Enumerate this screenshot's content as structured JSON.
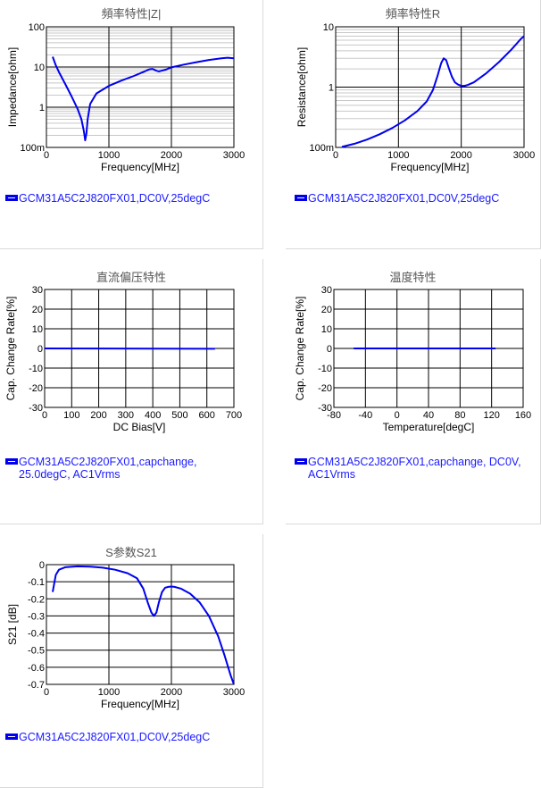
{
  "panels": [
    {
      "id": "p1",
      "title": "頻率特性|Z|",
      "legend": "GCM31A5C2J820FX01,DC0V,25degC"
    },
    {
      "id": "p2",
      "title": "頻率特性R",
      "legend": "GCM31A5C2J820FX01,DC0V,25degC"
    },
    {
      "id": "p3",
      "title": "直流偏压特性",
      "legend": "GCM31A5C2J820FX01,capchange,\n25.0degC, AC1Vrms"
    },
    {
      "id": "p4",
      "title": "温度特性",
      "legend": "GCM31A5C2J820FX01,capchange, DC0V,\nAC1Vrms"
    },
    {
      "id": "p5",
      "title": "S参数S21",
      "legend": "GCM31A5C2J820FX01,DC0V,25degC"
    }
  ],
  "colors": {
    "series": "#0000ee",
    "legend_text": "#1a1aff",
    "grid_major": "#000000",
    "grid_minor": "#c8c8c8"
  },
  "chart_data": [
    {
      "type": "line",
      "log_y": true,
      "xlabel": "Frequency[MHz]",
      "ylabel": "Impedance[ohm]",
      "xlim": [
        0,
        3000
      ],
      "ylim": [
        0.1,
        100
      ],
      "xticks": [
        0,
        1000,
        2000,
        3000
      ],
      "xtick_labels": [
        "0",
        "1000",
        "2000",
        "3000"
      ],
      "yticks": [
        0.1,
        1,
        10,
        100
      ],
      "ytick_labels": [
        "100m",
        "1",
        "10",
        "100"
      ],
      "series": [
        {
          "name": "GCM31A5C2J820FX01,DC0V,25degC",
          "x": [
            100,
            150,
            200,
            300,
            400,
            500,
            560,
            600,
            620,
            640,
            660,
            700,
            800,
            1000,
            1200,
            1400,
            1550,
            1650,
            1700,
            1750,
            1800,
            1900,
            2000,
            2200,
            2400,
            2600,
            2800,
            2900,
            3000
          ],
          "y": [
            18,
            11,
            7.5,
            3.8,
            1.9,
            0.9,
            0.5,
            0.25,
            0.15,
            0.22,
            0.5,
            1.2,
            2.2,
            3.4,
            4.6,
            6.0,
            7.5,
            8.8,
            9.0,
            8.2,
            7.8,
            8.5,
            9.8,
            11.5,
            13.2,
            15.0,
            16.5,
            17.0,
            16.5
          ]
        }
      ]
    },
    {
      "type": "line",
      "log_y": true,
      "xlabel": "Frequency[MHz]",
      "ylabel": "Resistance[ohm]",
      "xlim": [
        0,
        3000
      ],
      "ylim": [
        0.1,
        10
      ],
      "xticks": [
        0,
        1000,
        2000,
        3000
      ],
      "xtick_labels": [
        "0",
        "1000",
        "2000",
        "3000"
      ],
      "yticks": [
        0.1,
        1,
        10
      ],
      "ytick_labels": [
        "100m",
        "1",
        "10"
      ],
      "series": [
        {
          "name": "GCM31A5C2J820FX01,DC0V,25degC",
          "x": [
            100,
            300,
            500,
            700,
            900,
            1100,
            1300,
            1450,
            1550,
            1620,
            1680,
            1720,
            1760,
            1800,
            1850,
            1900,
            1950,
            2000,
            2050,
            2100,
            2200,
            2400,
            2600,
            2800,
            2950,
            3000
          ],
          "y": [
            0.102,
            0.115,
            0.135,
            0.165,
            0.21,
            0.28,
            0.4,
            0.58,
            0.9,
            1.5,
            2.5,
            3.0,
            2.8,
            2.1,
            1.5,
            1.2,
            1.1,
            1.05,
            1.05,
            1.08,
            1.2,
            1.7,
            2.6,
            4.2,
            6.3,
            7.0
          ]
        }
      ]
    },
    {
      "type": "line",
      "log_y": false,
      "xlabel": "DC Bias[V]",
      "ylabel": "Cap. Change Rate[%]",
      "xlim": [
        0,
        700
      ],
      "ylim": [
        -30,
        30
      ],
      "xticks": [
        0,
        100,
        200,
        300,
        400,
        500,
        600,
        700
      ],
      "xtick_labels": [
        "0",
        "100",
        "200",
        "300",
        "400",
        "500",
        "600",
        "700"
      ],
      "yticks": [
        -30,
        -20,
        -10,
        0,
        10,
        20,
        30
      ],
      "ytick_labels": [
        "-30",
        "-20",
        "-10",
        "0",
        "10",
        "20",
        "30"
      ],
      "series": [
        {
          "name": "GCM31A5C2J820FX01,capchange,25.0degC, AC1Vrms",
          "x": [
            0,
            630
          ],
          "y": [
            0,
            -0.2
          ]
        }
      ]
    },
    {
      "type": "line",
      "log_y": false,
      "xlabel": "Temperature[degC]",
      "ylabel": "Cap. Change Rate[%]",
      "xlim": [
        -80,
        160
      ],
      "ylim": [
        -30,
        30
      ],
      "xticks": [
        -80,
        -40,
        0,
        40,
        80,
        120,
        160
      ],
      "xtick_labels": [
        "-80",
        "-40",
        "0",
        "40",
        "80",
        "120",
        "160"
      ],
      "yticks": [
        -30,
        -20,
        -10,
        0,
        10,
        20,
        30
      ],
      "ytick_labels": [
        "-30",
        "-20",
        "-10",
        "0",
        "10",
        "20",
        "30"
      ],
      "series": [
        {
          "name": "GCM31A5C2J820FX01,capchange, DC0V, AC1Vrms",
          "x": [
            -55,
            125
          ],
          "y": [
            0,
            0
          ]
        }
      ]
    },
    {
      "type": "line",
      "log_y": false,
      "xlabel": "Frequency[MHz]",
      "ylabel": "S21 [dB]",
      "xlim": [
        0,
        3000
      ],
      "ylim": [
        -0.7,
        0
      ],
      "xticks": [
        0,
        1000,
        2000,
        3000
      ],
      "xtick_labels": [
        "0",
        "1000",
        "2000",
        "3000"
      ],
      "yticks": [
        -0.7,
        -0.6,
        -0.5,
        -0.4,
        -0.3,
        -0.2,
        -0.1,
        0
      ],
      "ytick_labels": [
        "-0.7",
        "-0.6",
        "-0.5",
        "-0.4",
        "-0.3",
        "-0.2",
        "-0.1",
        "0"
      ],
      "series": [
        {
          "name": "GCM31A5C2J820FX01,DC0V,25degC",
          "x": [
            100,
            150,
            200,
            300,
            500,
            700,
            900,
            1100,
            1300,
            1450,
            1550,
            1620,
            1680,
            1720,
            1760,
            1800,
            1850,
            1900,
            1950,
            2000,
            2050,
            2150,
            2300,
            2450,
            2600,
            2750,
            2850,
            2950,
            3000
          ],
          "y": [
            -0.16,
            -0.06,
            -0.03,
            -0.015,
            -0.01,
            -0.012,
            -0.018,
            -0.03,
            -0.05,
            -0.08,
            -0.14,
            -0.22,
            -0.28,
            -0.3,
            -0.28,
            -0.22,
            -0.16,
            -0.135,
            -0.13,
            -0.128,
            -0.13,
            -0.14,
            -0.17,
            -0.22,
            -0.3,
            -0.42,
            -0.53,
            -0.65,
            -0.7
          ]
        }
      ]
    }
  ]
}
